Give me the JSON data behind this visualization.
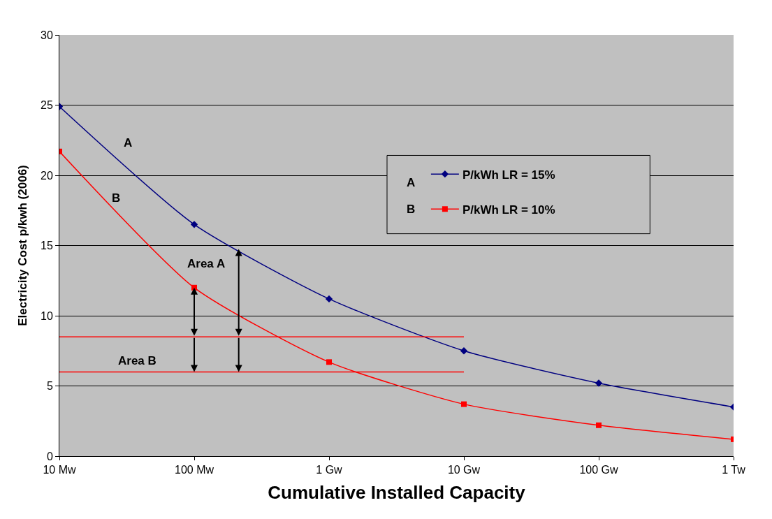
{
  "chart_data": {
    "type": "line",
    "xlabel": "Cumulative Installed Capacity",
    "ylabel": "Electricity Cost p/kwh (2006)",
    "categories": [
      "10 Mw",
      "100 Mw",
      "1 Gw",
      "10 Gw",
      "100 Gw",
      "1 Tw"
    ],
    "ylim": [
      0,
      30
    ],
    "yticks": [
      0,
      5,
      10,
      15,
      20,
      25,
      30
    ],
    "grid": "y",
    "legend": "top right",
    "line_style": "solid",
    "series": [
      {
        "name": "P/kWh LR = 15%",
        "color": "#000080",
        "marker": "diamond",
        "values": [
          24.9,
          16.5,
          11.2,
          7.5,
          5.2,
          3.5
        ]
      },
      {
        "name": "P/kWh LR = 10%",
        "color": "#ff0000",
        "marker": "square",
        "values": [
          21.7,
          12.0,
          6.7,
          3.7,
          2.2,
          1.2
        ]
      },
      {
        "color": "#ff0000",
        "marker": "none",
        "values": [
          8.5,
          8.5,
          8.5,
          8.5,
          null,
          null
        ]
      },
      {
        "color": "#ff0000",
        "marker": "none",
        "values": [
          6,
          6,
          6,
          6,
          null,
          null
        ]
      }
    ],
    "annotations": [
      "A",
      "B",
      "Area A",
      "Area B",
      "A",
      "B"
    ]
  }
}
